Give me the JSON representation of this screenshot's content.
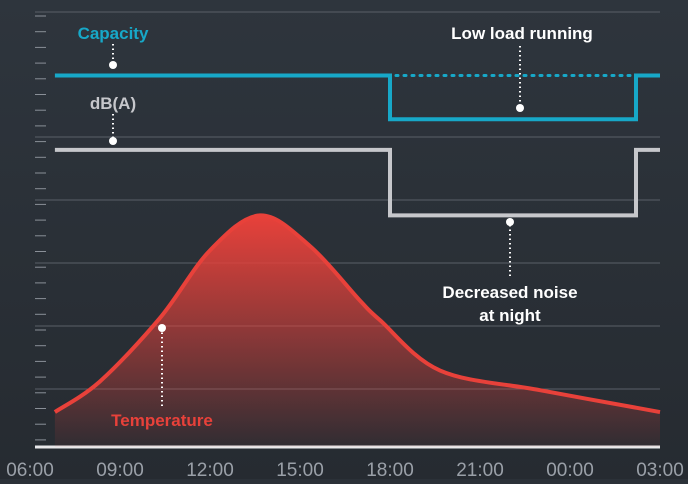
{
  "chart_data": {
    "type": "line",
    "categories": [
      "06:00",
      "09:00",
      "12:00",
      "15:00",
      "18:00",
      "21:00",
      "00:00",
      "03:00"
    ],
    "xlim": [
      6,
      27
    ],
    "ylim": [
      0,
      100
    ],
    "series": [
      {
        "name": "Capacity",
        "color": "#17a8c8",
        "smooth": false,
        "x": [
          6.83,
          18,
          18,
          26.2,
          26.2,
          27
        ],
        "values": [
          85,
          85,
          75,
          75,
          85,
          85
        ]
      },
      {
        "name": "dB(A)",
        "color": "#c6c7cb",
        "smooth": false,
        "x": [
          6.83,
          18,
          18,
          26.2,
          26.2,
          27
        ],
        "values": [
          68,
          68,
          53,
          53,
          68,
          68
        ]
      },
      {
        "name": "Temperature",
        "color": "#e8413a",
        "smooth": true,
        "fill": true,
        "x": [
          6.83,
          8.33,
          10.33,
          12,
          13.67,
          15.33,
          17,
          17.67,
          19.67,
          23,
          27
        ],
        "values": [
          8,
          15,
          29.5,
          45,
          53,
          46,
          33.5,
          29,
          17.5,
          13,
          8
        ]
      }
    ],
    "annotations": [
      "Low load running",
      "Decreased noise",
      "at night"
    ]
  }
}
